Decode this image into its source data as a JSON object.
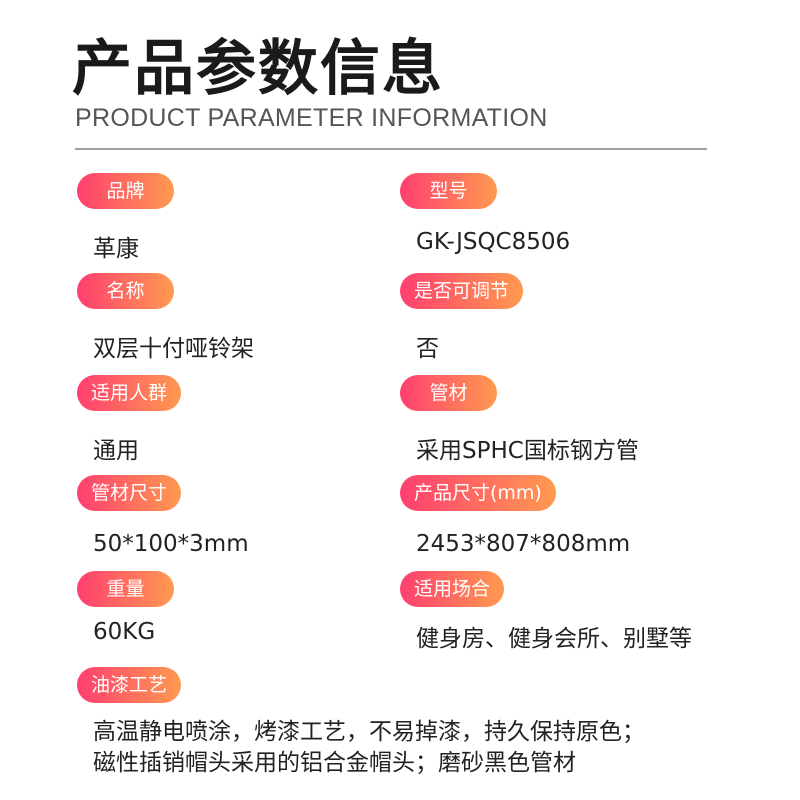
{
  "header": {
    "title": "产品参数信息",
    "subtitle": "PRODUCT PARAMETER INFORMATION"
  },
  "params": [
    {
      "label": "品牌",
      "value": "革康"
    },
    {
      "label": "型号",
      "value": "GK-JSQC8506"
    },
    {
      "label": "名称",
      "value": "双层十付哑铃架"
    },
    {
      "label": "是否可调节",
      "value": "否"
    },
    {
      "label": "适用人群",
      "value": "通用"
    },
    {
      "label": "管材",
      "value": "采用SPHC国标钢方管"
    },
    {
      "label": "管材尺寸",
      "value": "50*100*3mm"
    },
    {
      "label": "产品尺寸(mm)",
      "value": "2453*807*808mm"
    },
    {
      "label": "重量",
      "value": "60KG"
    },
    {
      "label": "适用场合",
      "value": "健身房、健身会所、别墅等"
    }
  ],
  "finish": {
    "label": "油漆工艺",
    "lines": [
      "高温静电喷涂，烤漆工艺，不易掉漆，持久保持原色；",
      "磁性插销帽头采用的铝合金帽头；磨砂黑色管材"
    ]
  },
  "colors": {
    "pill_start": "#ff3f6f",
    "pill_end": "#ff9a50"
  }
}
